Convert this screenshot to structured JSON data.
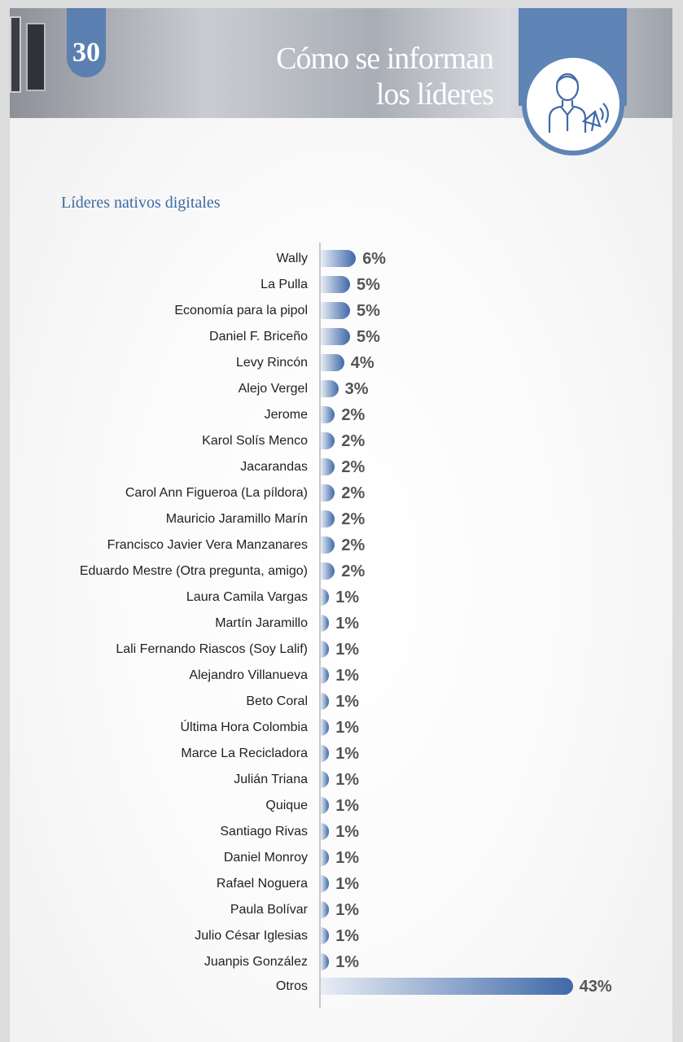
{
  "header": {
    "page_number": "30",
    "title_line1": "Cómo se informan",
    "title_line2": "los líderes"
  },
  "colors": {
    "accent": "#5b7fb0",
    "bar_end": "#3f69a8",
    "subtitle": "#3d6aa3"
  },
  "chart_data": {
    "type": "bar",
    "orientation": "horizontal",
    "title": "Líderes nativos digitales",
    "categories": [
      "Wally",
      "La Pulla",
      "Economía para la pipol",
      "Daniel F. Briceño",
      "Levy Rincón",
      "Alejo Vergel",
      "Jerome",
      "Karol Solís Menco",
      "Jacarandas",
      "Carol Ann Figueroa (La píldora)",
      "Mauricio Jaramillo Marín",
      "Francisco Javier Vera Manzanares",
      "Eduardo Mestre (Otra pregunta, amigo)",
      "Laura Camila Vargas",
      "Martín Jaramillo",
      "Lali Fernando Riascos (Soy Lalif)",
      "Alejandro Villanueva",
      "Beto Coral",
      "Última Hora Colombia",
      "Marce La Recicladora",
      "Julián Triana",
      "Quique",
      "Santiago Rivas",
      "Daniel Monroy",
      "Rafael Noguera",
      "Paula Bolívar",
      "Julio César Iglesias",
      "Juanpis González",
      "Otros"
    ],
    "values": [
      6,
      5,
      5,
      5,
      4,
      3,
      2,
      2,
      2,
      2,
      2,
      2,
      2,
      1,
      1,
      1,
      1,
      1,
      1,
      1,
      1,
      1,
      1,
      1,
      1,
      1,
      1,
      1,
      43
    ],
    "labels": [
      "6%",
      "5%",
      "5%",
      "5%",
      "4%",
      "3%",
      "2%",
      "2%",
      "2%",
      "2%",
      "2%",
      "2%",
      "2%",
      "1%",
      "1%",
      "1%",
      "1%",
      "1%",
      "1%",
      "1%",
      "1%",
      "1%",
      "1%",
      "1%",
      "1%",
      "1%",
      "1%",
      "1%",
      "43%"
    ],
    "unit": "%"
  }
}
